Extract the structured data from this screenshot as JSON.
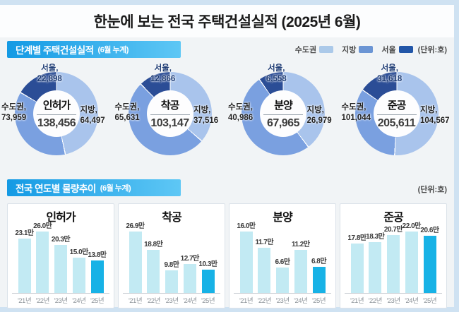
{
  "page": {
    "title": "한눈에 보는 전국 주택건설실적 (2025년 6월)"
  },
  "section1": {
    "header": "단계별 주택건설실적",
    "header_sub": "(6월 누계)",
    "unit_label": "(단위:호)",
    "legend": [
      {
        "label": "수도권",
        "color": "#abc9e9"
      },
      {
        "label": "지방",
        "color": "#6b95d4"
      },
      {
        "label": "서울",
        "color": "#2256a8"
      }
    ],
    "donut_colors": {
      "jibang": "#a9c4ec",
      "sudo": "#7aa0e0",
      "seoul": "#2b4d96"
    },
    "donuts": [
      {
        "name": "인허가",
        "total_label": "138,456",
        "seoul_title": "서울,",
        "seoul_label": "22,898",
        "sudo_title": "수도권,",
        "sudo_label": "73,959",
        "jibang_title": "지방,",
        "jibang_label": "64,497",
        "values": {
          "total": 138456,
          "seoul": 22898,
          "sudo": 73959,
          "jibang": 64497
        }
      },
      {
        "name": "착공",
        "total_label": "103,147",
        "seoul_title": "서울,",
        "seoul_label": "12,866",
        "sudo_title": "수도권,",
        "sudo_label": "65,631",
        "jibang_title": "지방,",
        "jibang_label": "37,516",
        "values": {
          "total": 103147,
          "seoul": 12866,
          "sudo": 65631,
          "jibang": 37516
        }
      },
      {
        "name": "분양",
        "total_label": "67,965",
        "seoul_title": "서울,",
        "seoul_label": "6,558",
        "sudo_title": "수도권,",
        "sudo_label": "40,986",
        "jibang_title": "지방,",
        "jibang_label": "26,979",
        "values": {
          "total": 67965,
          "seoul": 6558,
          "sudo": 40986,
          "jibang": 26979
        }
      },
      {
        "name": "준공",
        "total_label": "205,611",
        "seoul_title": "서울,",
        "seoul_label": "31,618",
        "sudo_title": "수도권,",
        "sudo_label": "101,044",
        "jibang_title": "지방,",
        "jibang_label": "104,567",
        "values": {
          "total": 205611,
          "seoul": 31618,
          "sudo": 101044,
          "jibang": 104567
        }
      }
    ]
  },
  "section2": {
    "header": "전국 연도별 물량추이",
    "header_sub": "(6월 누계)",
    "unit_label": "(단위:호)",
    "years": [
      "'21년",
      "'22년",
      "'23년",
      "'24년",
      "'25년"
    ],
    "bar_color": "#c2eaf3",
    "highlight_color": "#17b2e6",
    "charts": [
      {
        "title": "인허가",
        "labels": [
          "23.1만",
          "26.0만",
          "20.3만",
          "15.0만",
          "13.8만"
        ],
        "values": [
          23.1,
          26.0,
          20.3,
          15.0,
          13.8
        ]
      },
      {
        "title": "착공",
        "labels": [
          "26.9만",
          "18.8만",
          "9.8만",
          "12.7만",
          "10.3만"
        ],
        "values": [
          26.9,
          18.8,
          9.8,
          12.7,
          10.3
        ]
      },
      {
        "title": "분양",
        "labels": [
          "16.0만",
          "11.7만",
          "6.6만",
          "11.2만",
          "6.8만"
        ],
        "values": [
          16.0,
          11.7,
          6.6,
          11.2,
          6.8
        ]
      },
      {
        "title": "준공",
        "labels": [
          "17.8만",
          "18.3만",
          "20.7만",
          "22.0만",
          "20.6만"
        ],
        "values": [
          17.8,
          18.3,
          20.7,
          22.0,
          20.6
        ]
      }
    ]
  },
  "chart_data": [
    {
      "type": "pie",
      "title": "인허가 (6월 누계, 단위:호)",
      "total": 138456,
      "slices": [
        {
          "label": "수도권",
          "value": 73959
        },
        {
          "label": "지방",
          "value": 64497
        },
        {
          "label": "서울(수도권 내)",
          "value": 22898
        }
      ]
    },
    {
      "type": "pie",
      "title": "착공 (6월 누계, 단위:호)",
      "total": 103147,
      "slices": [
        {
          "label": "수도권",
          "value": 65631
        },
        {
          "label": "지방",
          "value": 37516
        },
        {
          "label": "서울(수도권 내)",
          "value": 12866
        }
      ]
    },
    {
      "type": "pie",
      "title": "분양 (6월 누계, 단위:호)",
      "total": 67965,
      "slices": [
        {
          "label": "수도권",
          "value": 40986
        },
        {
          "label": "지방",
          "value": 26979
        },
        {
          "label": "서울(수도권 내)",
          "value": 6558
        }
      ]
    },
    {
      "type": "pie",
      "title": "준공 (6월 누계, 단위:호)",
      "total": 205611,
      "slices": [
        {
          "label": "수도권",
          "value": 101044
        },
        {
          "label": "지방",
          "value": 104567
        },
        {
          "label": "서울(수도권 내)",
          "value": 31618
        }
      ]
    },
    {
      "type": "bar",
      "title": "인허가 연도별 물량추이 (6월 누계, 단위:만호)",
      "categories": [
        "'21년",
        "'22년",
        "'23년",
        "'24년",
        "'25년"
      ],
      "values": [
        23.1,
        26.0,
        20.3,
        15.0,
        13.8
      ],
      "ylim": [
        0,
        27
      ]
    },
    {
      "type": "bar",
      "title": "착공 연도별 물량추이 (6월 누계, 단위:만호)",
      "categories": [
        "'21년",
        "'22년",
        "'23년",
        "'24년",
        "'25년"
      ],
      "values": [
        26.9,
        18.8,
        9.8,
        12.7,
        10.3
      ],
      "ylim": [
        0,
        27
      ]
    },
    {
      "type": "bar",
      "title": "분양 연도별 물량추이 (6월 누계, 단위:만호)",
      "categories": [
        "'21년",
        "'22년",
        "'23년",
        "'24년",
        "'25년"
      ],
      "values": [
        16.0,
        11.7,
        6.6,
        11.2,
        6.8
      ],
      "ylim": [
        0,
        17
      ]
    },
    {
      "type": "bar",
      "title": "준공 연도별 물량추이 (6월 누계, 단위:만호)",
      "categories": [
        "'21년",
        "'22년",
        "'23년",
        "'24년",
        "'25년"
      ],
      "values": [
        17.8,
        18.3,
        20.7,
        22.0,
        20.6
      ],
      "ylim": [
        0,
        23
      ]
    }
  ]
}
